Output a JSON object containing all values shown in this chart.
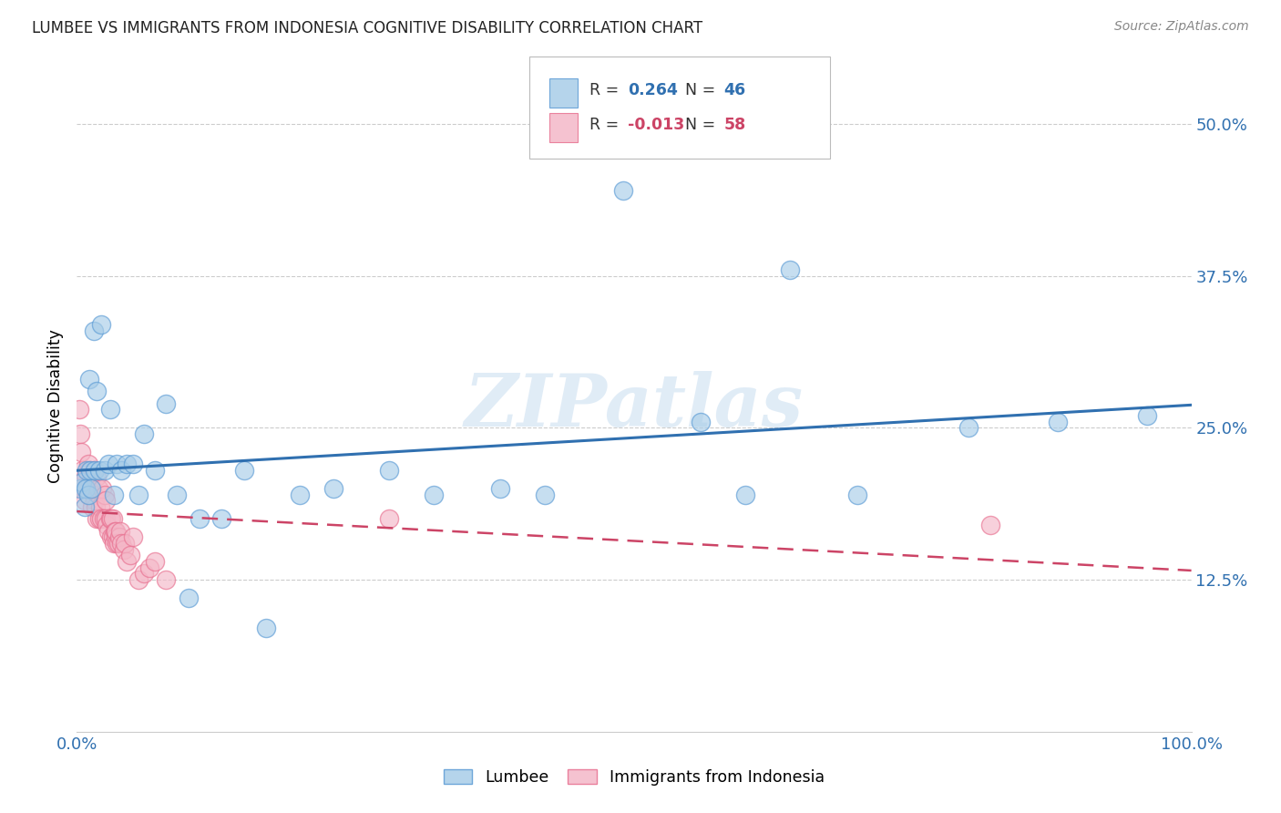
{
  "title": "LUMBEE VS IMMIGRANTS FROM INDONESIA COGNITIVE DISABILITY CORRELATION CHART",
  "source": "Source: ZipAtlas.com",
  "ylabel": "Cognitive Disability",
  "lumbee_R": "0.264",
  "lumbee_N": "46",
  "indonesia_R": "-0.013",
  "indonesia_N": "58",
  "legend_label_1": "Lumbee",
  "legend_label_2": "Immigrants from Indonesia",
  "watermark": "ZIPatlas",
  "blue_fill": "#a8cde8",
  "pink_fill": "#f4b8c8",
  "blue_edge": "#5b9bd5",
  "pink_edge": "#e87090",
  "blue_line": "#3070b0",
  "pink_line": "#cc4466",
  "lumbee_x": [
    0.003,
    0.005,
    0.007,
    0.008,
    0.009,
    0.01,
    0.011,
    0.012,
    0.013,
    0.015,
    0.016,
    0.018,
    0.02,
    0.022,
    0.025,
    0.028,
    0.03,
    0.033,
    0.036,
    0.04,
    0.045,
    0.05,
    0.055,
    0.06,
    0.07,
    0.08,
    0.09,
    0.1,
    0.11,
    0.13,
    0.15,
    0.17,
    0.2,
    0.23,
    0.28,
    0.32,
    0.38,
    0.42,
    0.49,
    0.56,
    0.6,
    0.64,
    0.7,
    0.8,
    0.88,
    0.96
  ],
  "lumbee_y": [
    0.2,
    0.205,
    0.185,
    0.2,
    0.215,
    0.195,
    0.29,
    0.215,
    0.2,
    0.33,
    0.215,
    0.28,
    0.215,
    0.335,
    0.215,
    0.22,
    0.265,
    0.195,
    0.22,
    0.215,
    0.22,
    0.22,
    0.195,
    0.245,
    0.215,
    0.27,
    0.195,
    0.11,
    0.175,
    0.175,
    0.215,
    0.085,
    0.195,
    0.2,
    0.215,
    0.195,
    0.2,
    0.195,
    0.445,
    0.255,
    0.195,
    0.38,
    0.195,
    0.25,
    0.255,
    0.26
  ],
  "indonesia_x": [
    0.002,
    0.003,
    0.004,
    0.005,
    0.005,
    0.006,
    0.007,
    0.008,
    0.009,
    0.01,
    0.01,
    0.011,
    0.012,
    0.013,
    0.014,
    0.015,
    0.015,
    0.016,
    0.017,
    0.018,
    0.018,
    0.019,
    0.02,
    0.021,
    0.022,
    0.023,
    0.024,
    0.025,
    0.026,
    0.026,
    0.027,
    0.028,
    0.03,
    0.031,
    0.031,
    0.032,
    0.032,
    0.033,
    0.034,
    0.035,
    0.035,
    0.036,
    0.037,
    0.038,
    0.039,
    0.04,
    0.042,
    0.043,
    0.045,
    0.048,
    0.05,
    0.055,
    0.06,
    0.065,
    0.07,
    0.08,
    0.28,
    0.82
  ],
  "indonesia_y": [
    0.265,
    0.245,
    0.23,
    0.205,
    0.215,
    0.2,
    0.19,
    0.21,
    0.2,
    0.195,
    0.22,
    0.215,
    0.205,
    0.2,
    0.185,
    0.195,
    0.215,
    0.19,
    0.185,
    0.21,
    0.175,
    0.2,
    0.175,
    0.185,
    0.175,
    0.2,
    0.175,
    0.195,
    0.19,
    0.175,
    0.17,
    0.165,
    0.175,
    0.175,
    0.16,
    0.175,
    0.16,
    0.155,
    0.165,
    0.16,
    0.165,
    0.155,
    0.155,
    0.16,
    0.165,
    0.155,
    0.15,
    0.155,
    0.14,
    0.145,
    0.16,
    0.125,
    0.13,
    0.135,
    0.14,
    0.125,
    0.175,
    0.17
  ],
  "xlim": [
    0.0,
    1.0
  ],
  "ylim": [
    0.0,
    0.535
  ],
  "yticks": [
    0.0,
    0.125,
    0.25,
    0.375,
    0.5
  ],
  "ytick_labels": [
    "",
    "12.5%",
    "25.0%",
    "37.5%",
    "50.0%"
  ]
}
